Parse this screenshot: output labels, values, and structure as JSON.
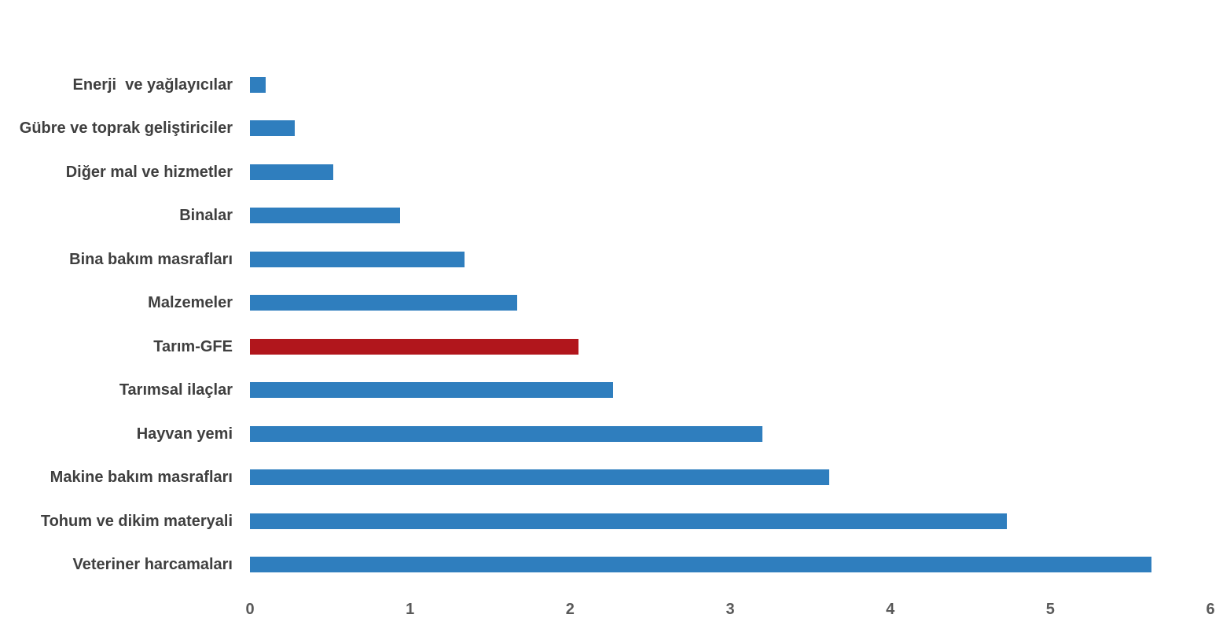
{
  "chart_data": {
    "type": "bar",
    "orientation": "horizontal",
    "title": "",
    "xlabel": "",
    "ylabel": "",
    "categories": [
      "Enerji  ve yağlayıcılar",
      "Gübre ve toprak geliştiriciler",
      "Diğer mal ve hizmetler",
      "Binalar",
      "Bina bakım masrafları",
      "Malzemeler",
      "Tarım-GFE",
      "Tarımsal ilaçlar",
      "Hayvan yemi",
      "Makine bakım masrafları",
      "Tohum ve dikim materyali",
      "Veteriner harcamaları"
    ],
    "values": [
      0.1,
      0.28,
      0.52,
      0.94,
      1.34,
      1.67,
      2.05,
      2.27,
      3.2,
      3.62,
      4.73,
      5.63
    ],
    "highlight_category": "Tarım-GFE",
    "bar_color": "#2f7ebe",
    "highlight_color": "#b1161c",
    "xlim": [
      0,
      6
    ],
    "x_ticks": [
      0,
      1,
      2,
      3,
      4,
      5,
      6
    ],
    "grid": false,
    "legend": false
  },
  "colors": {
    "category_label_text": "#3f3f3f",
    "tick_label_text": "#595959",
    "background": "#ffffff"
  }
}
